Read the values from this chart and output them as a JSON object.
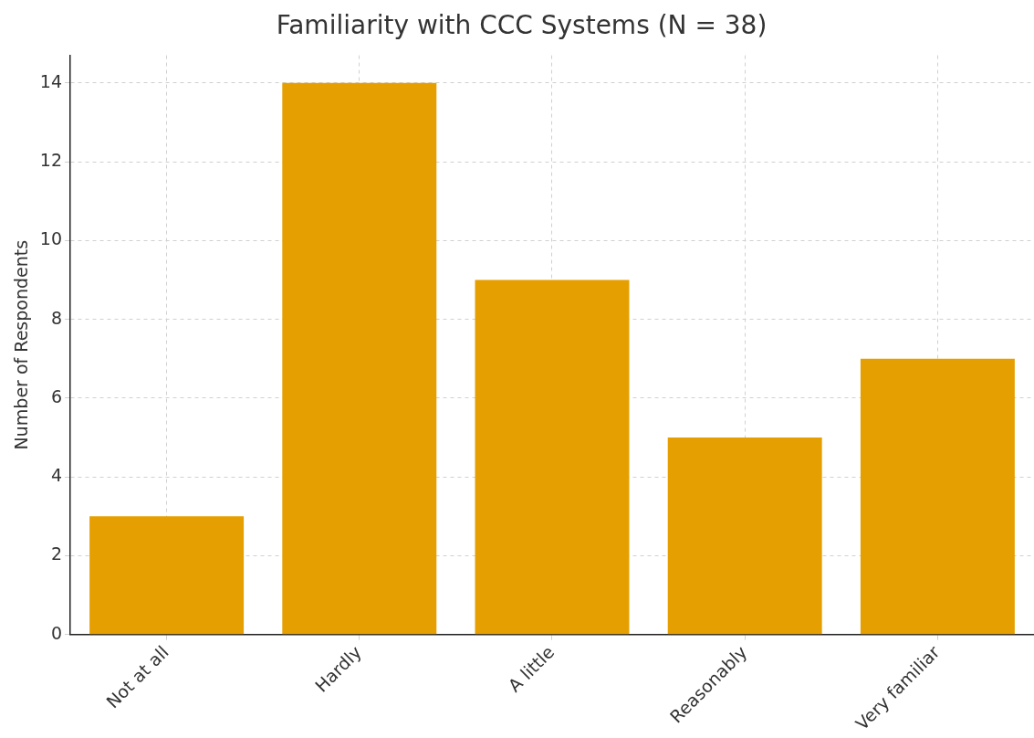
{
  "chart_data": {
    "type": "bar",
    "title": "Familiarity with CCC Systems (N = 38)",
    "ylabel": "Number of Respondents",
    "categories": [
      "Not at all",
      "Hardly",
      "A little",
      "Reasonably",
      "Very familiar"
    ],
    "values": [
      3,
      14,
      9,
      5,
      7
    ],
    "color": "#e69f00",
    "ylim": [
      0,
      14.7
    ],
    "yticks": [
      0,
      2,
      4,
      6,
      8,
      10,
      12,
      14
    ],
    "grid": true,
    "legend": false
  }
}
